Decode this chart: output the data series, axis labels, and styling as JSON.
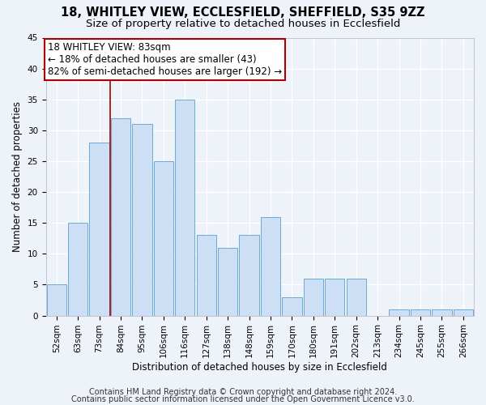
{
  "title": "18, WHITLEY VIEW, ECCLESFIELD, SHEFFIELD, S35 9ZZ",
  "subtitle": "Size of property relative to detached houses in Ecclesfield",
  "xlabel": "Distribution of detached houses by size in Ecclesfield",
  "ylabel": "Number of detached properties",
  "categories": [
    "52sqm",
    "63sqm",
    "73sqm",
    "84sqm",
    "95sqm",
    "106sqm",
    "116sqm",
    "127sqm",
    "138sqm",
    "148sqm",
    "159sqm",
    "170sqm",
    "180sqm",
    "191sqm",
    "202sqm",
    "213sqm",
    "234sqm",
    "245sqm",
    "255sqm",
    "266sqm"
  ],
  "values": [
    5,
    15,
    28,
    32,
    31,
    25,
    35,
    13,
    11,
    13,
    16,
    3,
    6,
    6,
    6,
    0,
    1,
    1,
    1,
    1
  ],
  "bar_color": "#ccdff5",
  "bar_edge_color": "#6aaad4",
  "highlight_line_color": "#aa0000",
  "annotation_line1": "18 WHITLEY VIEW: 83sqm",
  "annotation_line2": "← 18% of detached houses are smaller (43)",
  "annotation_line3": "82% of semi-detached houses are larger (192) →",
  "annotation_box_color": "#ffffff",
  "annotation_box_edge_color": "#aa0000",
  "ylim": [
    0,
    45
  ],
  "yticks": [
    0,
    5,
    10,
    15,
    20,
    25,
    30,
    35,
    40,
    45
  ],
  "footer_line1": "Contains HM Land Registry data © Crown copyright and database right 2024.",
  "footer_line2": "Contains public sector information licensed under the Open Government Licence v3.0.",
  "bg_color": "#eef2f9",
  "plot_bg_color": "#eef2f9",
  "grid_color": "#ffffff",
  "title_fontsize": 10.5,
  "subtitle_fontsize": 9.5,
  "axis_label_fontsize": 8.5,
  "tick_fontsize": 7.5,
  "footer_fontsize": 7.0,
  "annotation_fontsize": 8.5
}
